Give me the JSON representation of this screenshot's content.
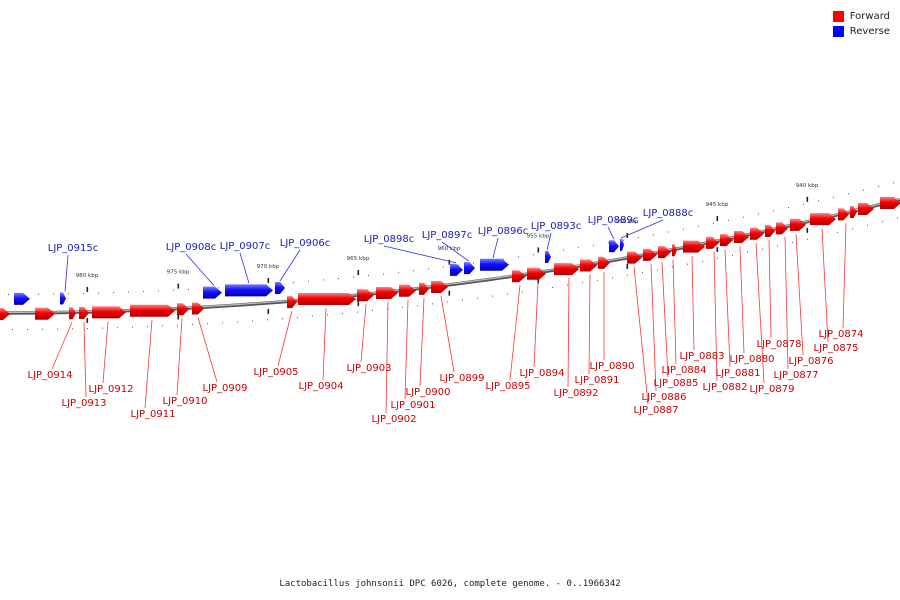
{
  "caption": "Lactobacillus johnsonii DPC 6026, complete genome. - 0..1966342",
  "legend": [
    {
      "label": "Forward",
      "color": "#ff0000"
    },
    {
      "label": "Reverse",
      "color": "#0000ff"
    }
  ],
  "colors": {
    "forward": "#ee0000",
    "forward_label": "#cc0000",
    "reverse": "#1111ff",
    "reverse_label": "#1a1ab0",
    "backbone": "#888888"
  },
  "ticks": [
    "980 kbp",
    "975 kbp",
    "970 kbp",
    "965 kbp",
    "960 kbp",
    "955 kbp",
    "950 kbp",
    "945 kbp",
    "940 kbp"
  ],
  "reverse_genes": [
    "LJP_0915c",
    "LJP_0908c",
    "LJP_0907c",
    "LJP_0906c",
    "LJP_0898c",
    "LJP_0897c",
    "LJP_0896c",
    "LJP_0893c",
    "LJP_0889c",
    "LJP_0888c"
  ],
  "forward_genes": [
    "LJP_0914",
    "LJP_0913",
    "LJP_0912",
    "LJP_0911",
    "LJP_0910",
    "LJP_0909",
    "LJP_0905",
    "LJP_0904",
    "LJP_0903",
    "LJP_0902",
    "LJP_0901",
    "LJP_0900",
    "LJP_0899",
    "LJP_0895",
    "LJP_0894",
    "LJP_0892",
    "LJP_0891",
    "LJP_0890",
    "LJP_0887",
    "LJP_0886",
    "LJP_0885",
    "LJP_0884",
    "LJP_0883",
    "LJP_0882",
    "LJP_0881",
    "LJP_0880",
    "LJP_0879",
    "LJP_0878",
    "LJP_0877",
    "LJP_0876",
    "LJP_0875",
    "LJP_0874"
  ]
}
